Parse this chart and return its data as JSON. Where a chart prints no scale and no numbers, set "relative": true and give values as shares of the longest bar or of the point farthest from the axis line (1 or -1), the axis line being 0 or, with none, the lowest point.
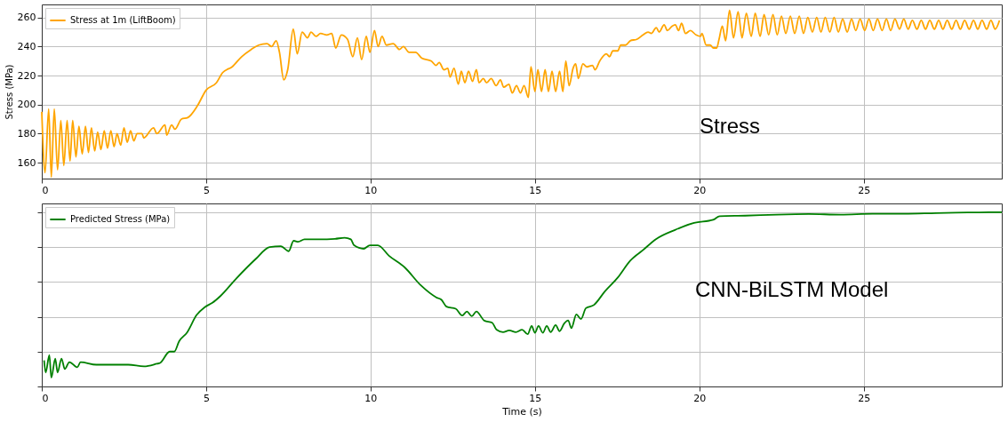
{
  "chart_data": [
    {
      "type": "line",
      "ylabel": "Stress (MPa)",
      "xlim": [
        0,
        29.2
      ],
      "xticks": [
        0,
        5,
        10,
        15,
        20,
        25
      ],
      "ylim": [
        149,
        269
      ],
      "yticks": [
        160,
        180,
        200,
        220,
        240,
        260
      ],
      "grid": true,
      "legend": "top left",
      "annotations": [
        "Stress"
      ],
      "series": [
        {
          "name": "Stress at 1m (LiftBoom)",
          "color": "#ffa500",
          "x": [
            0,
            0.1,
            0.21,
            0.29,
            0.38,
            0.48,
            0.58,
            0.67,
            0.77,
            0.86,
            0.94,
            1.04,
            1.13,
            1.23,
            1.33,
            1.42,
            1.51,
            1.61,
            1.7,
            1.8,
            1.9,
            2.0,
            2.1,
            2.2,
            2.29,
            2.4,
            2.5,
            2.6,
            2.7,
            2.8,
            2.9,
            3.05,
            3.1,
            3.4,
            3.5,
            3.75,
            3.8,
            3.95,
            4.05,
            4.25,
            4.44,
            4.73,
            5.0,
            5.31,
            5.5,
            5.79,
            6.08,
            6.37,
            6.6,
            6.85,
            6.99,
            7.13,
            7.23,
            7.36,
            7.48,
            7.65,
            7.77,
            7.92,
            8.08,
            8.19,
            8.34,
            8.48,
            8.67,
            8.82,
            8.94,
            9.11,
            9.3,
            9.46,
            9.6,
            9.73,
            9.87,
            9.98,
            10.12,
            10.23,
            10.35,
            10.48,
            10.69,
            10.88,
            11.0,
            11.17,
            11.37,
            11.56,
            11.85,
            11.99,
            12.09,
            12.23,
            12.35,
            12.42,
            12.54,
            12.67,
            12.76,
            12.87,
            12.98,
            13.1,
            13.22,
            13.3,
            13.43,
            13.53,
            13.67,
            13.82,
            13.95,
            14.05,
            14.21,
            14.31,
            14.44,
            14.56,
            14.67,
            14.8,
            14.88,
            15.0,
            15.09,
            15.2,
            15.31,
            15.41,
            15.52,
            15.63,
            15.75,
            15.85,
            15.94,
            16.04,
            16.16,
            16.24,
            16.32,
            16.46,
            16.58,
            16.75,
            16.83,
            16.97,
            17.17,
            17.27,
            17.37,
            17.52,
            17.61,
            17.76,
            17.9,
            18.1,
            18.29,
            18.44,
            18.54,
            18.69,
            18.78,
            18.93,
            19.03,
            19.17,
            19.27,
            19.37,
            19.46,
            19.58,
            19.73,
            19.9,
            20.04,
            20.08,
            20.21,
            20.33,
            20.43,
            20.53,
            20.6,
            20.7,
            20.8,
            20.92,
            21.04,
            21.18,
            21.3,
            21.43,
            21.58,
            21.7,
            21.85,
            21.97,
            22.11,
            22.24,
            22.37,
            22.5,
            22.63,
            22.77,
            22.9,
            23.04,
            23.17,
            23.3,
            23.44,
            23.57,
            23.7,
            23.83,
            23.97,
            24.1,
            24.23,
            24.36,
            24.5,
            24.63,
            24.76,
            24.89,
            25.03,
            25.16,
            25.29,
            25.42,
            25.56,
            25.69,
            25.82,
            25.95,
            26.09,
            26.22,
            26.35,
            26.48,
            26.62,
            26.75,
            26.88,
            27.01,
            27.15,
            27.28,
            27.41,
            27.54,
            27.68,
            27.81,
            27.94,
            28.07,
            28.21,
            28.34,
            28.47,
            28.6,
            28.74,
            28.87,
            29.0,
            29.13
          ],
          "values": [
            195,
            153,
            197,
            150,
            197,
            155,
            189,
            158,
            189,
            161,
            189,
            164,
            185,
            166,
            185,
            167,
            184,
            168,
            181,
            169,
            182,
            170,
            182,
            171,
            180,
            172,
            184,
            174,
            182,
            175,
            180,
            180,
            177,
            184,
            180,
            186,
            179,
            186,
            183,
            190,
            191,
            199,
            210,
            215,
            222,
            226,
            233,
            238,
            241,
            242,
            240,
            244,
            236,
            217,
            224,
            252,
            235,
            250,
            246,
            250,
            247,
            249,
            248,
            249,
            239,
            248,
            245,
            233,
            246,
            231,
            247,
            236,
            251,
            240,
            247,
            241,
            242,
            238,
            240,
            236,
            236,
            232,
            230,
            227,
            229,
            224,
            225,
            219,
            225,
            214,
            223,
            215,
            223,
            216,
            224,
            215,
            218,
            215,
            218,
            213,
            217,
            212,
            214,
            208,
            213,
            208,
            213,
            205,
            226,
            209,
            224,
            209,
            224,
            209,
            223,
            209,
            223,
            209,
            230,
            213,
            225,
            228,
            218,
            228,
            226,
            227,
            224,
            230,
            235,
            233,
            237,
            237,
            241,
            241,
            244,
            245,
            248,
            250,
            249,
            253,
            250,
            255,
            251,
            254,
            255,
            251,
            256,
            249,
            251,
            248,
            247,
            249,
            241,
            241,
            239,
            239,
            245,
            254,
            244,
            265,
            246,
            264,
            246,
            263,
            247,
            263,
            247,
            262,
            248,
            262,
            248,
            261,
            249,
            261,
            249,
            261,
            249,
            260,
            250,
            260,
            250,
            260,
            250,
            260,
            250,
            259,
            250,
            259,
            251,
            259,
            251,
            259,
            251,
            259,
            251,
            259,
            251,
            259,
            252,
            259,
            252,
            258,
            252,
            258,
            252,
            258,
            252,
            258,
            252,
            258,
            252,
            258,
            252,
            258,
            252,
            258,
            252,
            258,
            252,
            258,
            252,
            258
          ]
        }
      ]
    },
    {
      "type": "line",
      "xlabel": "Time (s)",
      "xlim": [
        0,
        29.2
      ],
      "xticks": [
        0,
        5,
        10,
        15,
        20,
        25
      ],
      "relative": true,
      "tick_labels": "x",
      "grid": true,
      "legend": "top left",
      "annotations": [
        "CNN-BiLSTM Model"
      ],
      "series": [
        {
          "name": "Predicted Stress (MPa)",
          "color": "#008000",
          "x": [
            0.07,
            0.12,
            0.23,
            0.29,
            0.41,
            0.48,
            0.6,
            0.7,
            0.84,
            1.08,
            1.18,
            1.66,
            2.63,
            3.11,
            3.5,
            3.6,
            3.89,
            4.03,
            4.18,
            4.42,
            4.71,
            4.95,
            5.19,
            5.44,
            5.92,
            6.5,
            6.93,
            7.27,
            7.51,
            7.66,
            7.8,
            7.99,
            8.43,
            8.92,
            9.21,
            9.4,
            9.5,
            9.79,
            9.98,
            10.22,
            10.56,
            11.04,
            11.53,
            12.01,
            12.16,
            12.31,
            12.59,
            12.79,
            12.93,
            13.08,
            13.22,
            13.46,
            13.7,
            13.83,
            14.03,
            14.22,
            14.42,
            14.61,
            14.78,
            14.9,
            15.0,
            15.11,
            15.24,
            15.36,
            15.48,
            15.63,
            15.75,
            15.89,
            16.01,
            16.11,
            16.26,
            16.4,
            16.55,
            16.79,
            17.13,
            17.52,
            17.9,
            18.29,
            18.68,
            19.26,
            19.84,
            20.42,
            20.62,
            21.39,
            22.36,
            23.33,
            24.3,
            25.27,
            26.24,
            27.2,
            28.17,
            28.8,
            29.2
          ],
          "values": [
            0.15,
            0.08,
            0.18,
            0.05,
            0.16,
            0.08,
            0.16,
            0.1,
            0.14,
            0.11,
            0.14,
            0.125,
            0.125,
            0.115,
            0.13,
            0.135,
            0.2,
            0.2,
            0.26,
            0.31,
            0.41,
            0.454,
            0.48,
            0.52,
            0.62,
            0.73,
            0.8,
            0.805,
            0.776,
            0.836,
            0.83,
            0.844,
            0.844,
            0.847,
            0.853,
            0.844,
            0.81,
            0.79,
            0.81,
            0.81,
            0.75,
            0.683,
            0.58,
            0.51,
            0.497,
            0.458,
            0.446,
            0.407,
            0.43,
            0.403,
            0.43,
            0.378,
            0.366,
            0.326,
            0.312,
            0.322,
            0.312,
            0.326,
            0.3,
            0.347,
            0.308,
            0.347,
            0.308,
            0.347,
            0.312,
            0.352,
            0.317,
            0.361,
            0.379,
            0.335,
            0.414,
            0.387,
            0.449,
            0.467,
            0.546,
            0.625,
            0.722,
            0.783,
            0.845,
            0.898,
            0.938,
            0.956,
            0.977,
            0.98,
            0.986,
            0.989,
            0.986,
            0.991,
            0.991,
            0.995,
            0.998,
            1.0,
            1.0
          ]
        }
      ]
    }
  ]
}
